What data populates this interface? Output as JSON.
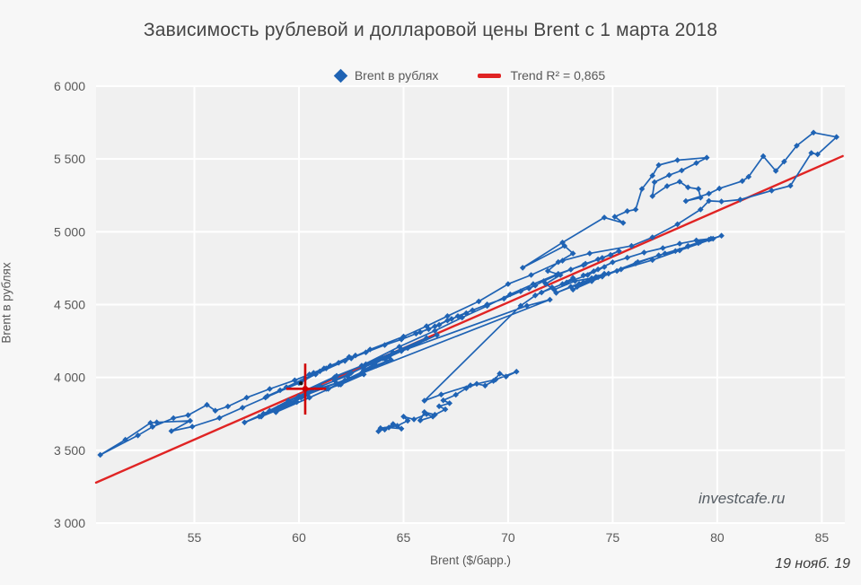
{
  "title": "Зависимость рублевой и долларовой цены Brent с 1 марта 2018",
  "legend": {
    "series_label": "Brent в рублях",
    "trend_label": "Trend R² = 0,865"
  },
  "watermark": "investcafe.ru",
  "date_note": "19 нояб. 19",
  "colors": {
    "background": "#f7f7f7",
    "plot_background": "#f0f0f0",
    "gridline": "#ffffff",
    "series_blue": "#1f63b4",
    "trend_red": "#e02424",
    "crosshair_red": "#d00000",
    "cursor_black": "#161616",
    "text_gray": "#595959",
    "title_gray": "#454545"
  },
  "chart_data": {
    "type": "scatter",
    "title": "Зависимость рублевой и долларовой цены Brent с 1 марта 2018",
    "xlabel": "Brent ($/барр.)",
    "ylabel": "Brent в рублях",
    "xlim": [
      50.3,
      86.1
    ],
    "ylim": [
      3000,
      6000
    ],
    "grid": true,
    "legend_position": "top-center",
    "x_ticks": [
      {
        "value": 55,
        "label": "55"
      },
      {
        "value": 60,
        "label": "60"
      },
      {
        "value": 65,
        "label": "65"
      },
      {
        "value": 70,
        "label": "70"
      },
      {
        "value": 75,
        "label": "75"
      },
      {
        "value": 80,
        "label": "80"
      },
      {
        "value": 85,
        "label": "85"
      }
    ],
    "y_ticks": [
      {
        "value": 3000,
        "label": "3 000"
      },
      {
        "value": 3500,
        "label": "3 500"
      },
      {
        "value": 4000,
        "label": "4 000"
      },
      {
        "value": 4500,
        "label": "4 500"
      },
      {
        "value": 5000,
        "label": "5 000"
      },
      {
        "value": 5500,
        "label": "5 500"
      },
      {
        "value": 6000,
        "label": "6 000"
      }
    ],
    "series": [
      {
        "name": "Brent в рублях",
        "marker": "diamond",
        "color": "#1f63b4",
        "connected": true,
        "points": [
          [
            63.8,
            3630
          ],
          [
            64.3,
            3656
          ],
          [
            64.9,
            3648
          ],
          [
            64.5,
            3681
          ],
          [
            64.1,
            3642
          ],
          [
            63.9,
            3652
          ],
          [
            64.7,
            3668
          ],
          [
            65.2,
            3703
          ],
          [
            65.0,
            3731
          ],
          [
            65.5,
            3712
          ],
          [
            66.1,
            3748
          ],
          [
            66.4,
            3731
          ],
          [
            65.8,
            3705
          ],
          [
            66.0,
            3762
          ],
          [
            66.5,
            3744
          ],
          [
            67.0,
            3781
          ],
          [
            66.7,
            3802
          ],
          [
            67.2,
            3823
          ],
          [
            66.9,
            3843
          ],
          [
            67.5,
            3881
          ],
          [
            68.0,
            3926
          ],
          [
            68.5,
            3956
          ],
          [
            68.9,
            3944
          ],
          [
            69.3,
            3976
          ],
          [
            69.6,
            4026
          ],
          [
            69.9,
            4006
          ],
          [
            70.4,
            4040
          ],
          [
            69.4,
            3985
          ],
          [
            68.2,
            3946
          ],
          [
            66.8,
            3883
          ],
          [
            66.0,
            3840
          ],
          [
            70.6,
            4492
          ],
          [
            71.3,
            4563
          ],
          [
            72.1,
            4618
          ],
          [
            71.6,
            4583
          ],
          [
            72.6,
            4641
          ],
          [
            73.1,
            4683
          ],
          [
            72.8,
            4652
          ],
          [
            73.8,
            4703
          ],
          [
            74.6,
            4758
          ],
          [
            74.1,
            4729
          ],
          [
            73.6,
            4701
          ],
          [
            74.3,
            4742
          ],
          [
            75.0,
            4791
          ],
          [
            75.7,
            4822
          ],
          [
            76.5,
            4858
          ],
          [
            77.4,
            4888
          ],
          [
            78.2,
            4918
          ],
          [
            79.0,
            4941
          ],
          [
            79.7,
            4953
          ],
          [
            79.2,
            4931
          ],
          [
            78.6,
            4903
          ],
          [
            79.1,
            4922
          ],
          [
            79.6,
            4946
          ],
          [
            80.2,
            4973
          ],
          [
            79.8,
            4952
          ],
          [
            78.2,
            4872
          ],
          [
            76.9,
            4806
          ],
          [
            75.4,
            4742
          ],
          [
            74.3,
            4688
          ],
          [
            73.3,
            4622
          ],
          [
            74.0,
            4661
          ],
          [
            73.1,
            4603
          ],
          [
            74.5,
            4692
          ],
          [
            75.2,
            4731
          ],
          [
            76.1,
            4782
          ],
          [
            77.2,
            4838
          ],
          [
            78.0,
            4868
          ],
          [
            78.6,
            4899
          ],
          [
            77.5,
            4851
          ],
          [
            76.2,
            4792
          ],
          [
            74.8,
            4713
          ],
          [
            73.4,
            4642
          ],
          [
            72.3,
            4581
          ],
          [
            73.0,
            4623
          ],
          [
            74.2,
            4691
          ],
          [
            73.6,
            4653
          ],
          [
            74.6,
            4712
          ],
          [
            74.0,
            4682
          ],
          [
            73.2,
            4662
          ],
          [
            72.2,
            4602
          ],
          [
            71.8,
            4642
          ],
          [
            72.5,
            4703
          ],
          [
            71.9,
            4731
          ],
          [
            72.4,
            4792
          ],
          [
            73.1,
            4851
          ],
          [
            72.7,
            4903
          ],
          [
            70.7,
            4753
          ],
          [
            72.6,
            4926
          ],
          [
            74.6,
            5098
          ],
          [
            75.5,
            5061
          ],
          [
            75.1,
            5103
          ],
          [
            75.7,
            5142
          ],
          [
            76.1,
            5153
          ],
          [
            76.4,
            5294
          ],
          [
            76.9,
            5386
          ],
          [
            77.2,
            5458
          ],
          [
            78.1,
            5492
          ],
          [
            79.5,
            5509
          ],
          [
            79.0,
            5472
          ],
          [
            78.3,
            5421
          ],
          [
            77.7,
            5389
          ],
          [
            77.0,
            5341
          ],
          [
            76.9,
            5245
          ],
          [
            77.6,
            5314
          ],
          [
            78.2,
            5344
          ],
          [
            78.6,
            5305
          ],
          [
            79.1,
            5294
          ],
          [
            79.2,
            5234
          ],
          [
            78.5,
            5211
          ],
          [
            79.6,
            5262
          ],
          [
            80.1,
            5297
          ],
          [
            81.2,
            5348
          ],
          [
            81.5,
            5378
          ],
          [
            82.2,
            5519
          ],
          [
            82.8,
            5418
          ],
          [
            83.2,
            5482
          ],
          [
            83.8,
            5591
          ],
          [
            84.6,
            5681
          ],
          [
            85.7,
            5651
          ],
          [
            84.8,
            5532
          ],
          [
            84.5,
            5541
          ],
          [
            83.5,
            5316
          ],
          [
            82.6,
            5283
          ],
          [
            81.1,
            5221
          ],
          [
            80.2,
            5208
          ],
          [
            79.6,
            5212
          ],
          [
            79.2,
            5153
          ],
          [
            78.1,
            5052
          ],
          [
            76.9,
            4962
          ],
          [
            75.9,
            4903
          ],
          [
            73.9,
            4852
          ],
          [
            72.6,
            4801
          ],
          [
            71.1,
            4703
          ],
          [
            70.0,
            4641
          ],
          [
            68.6,
            4522
          ],
          [
            67.1,
            4421
          ],
          [
            66.1,
            4352
          ],
          [
            65.0,
            4281
          ],
          [
            63.4,
            4192
          ],
          [
            62.2,
            4113
          ],
          [
            60.3,
            3992
          ],
          [
            59.4,
            3933
          ],
          [
            61.0,
            4042
          ],
          [
            62.4,
            4141
          ],
          [
            60.8,
            4021
          ],
          [
            59.1,
            3912
          ],
          [
            58.5,
            3873
          ],
          [
            60.1,
            3971
          ],
          [
            61.3,
            4062
          ],
          [
            60.0,
            3961
          ],
          [
            58.4,
            3862
          ],
          [
            57.3,
            3792
          ],
          [
            56.2,
            3722
          ],
          [
            54.9,
            3662
          ],
          [
            53.9,
            3632
          ],
          [
            54.8,
            3702
          ],
          [
            53.2,
            3692
          ],
          [
            52.9,
            3688
          ],
          [
            51.7,
            3572
          ],
          [
            50.5,
            3468
          ],
          [
            52.3,
            3602
          ],
          [
            53.0,
            3661
          ],
          [
            54.0,
            3721
          ],
          [
            54.7,
            3741
          ],
          [
            55.6,
            3812
          ],
          [
            56.0,
            3772
          ],
          [
            56.6,
            3801
          ],
          [
            57.5,
            3861
          ],
          [
            58.6,
            3921
          ],
          [
            59.8,
            3981
          ],
          [
            60.5,
            4021
          ],
          [
            61.2,
            4062
          ],
          [
            60.7,
            4032
          ],
          [
            61.5,
            4081
          ],
          [
            62.7,
            4151
          ],
          [
            61.9,
            4101
          ],
          [
            62.5,
            4131
          ],
          [
            63.2,
            4172
          ],
          [
            64.1,
            4222
          ],
          [
            64.9,
            4261
          ],
          [
            65.6,
            4301
          ],
          [
            66.2,
            4332
          ],
          [
            65.8,
            4311
          ],
          [
            66.7,
            4361
          ],
          [
            67.1,
            4391
          ],
          [
            66.5,
            4351
          ],
          [
            67.3,
            4402
          ],
          [
            68.0,
            4441
          ],
          [
            67.6,
            4421
          ],
          [
            68.3,
            4461
          ],
          [
            69.0,
            4501
          ],
          [
            69.8,
            4541
          ],
          [
            70.6,
            4591
          ],
          [
            71.3,
            4631
          ],
          [
            71.0,
            4611
          ],
          [
            71.7,
            4661
          ],
          [
            72.3,
            4701
          ],
          [
            73.0,
            4741
          ],
          [
            73.7,
            4781
          ],
          [
            74.3,
            4811
          ],
          [
            74.9,
            4841
          ],
          [
            75.3,
            4868
          ],
          [
            74.5,
            4821
          ],
          [
            73.6,
            4771
          ],
          [
            72.4,
            4711
          ],
          [
            71.2,
            4641
          ],
          [
            70.1,
            4571
          ],
          [
            69.0,
            4491
          ],
          [
            67.8,
            4411
          ],
          [
            66.5,
            4321
          ],
          [
            64.8,
            4211
          ],
          [
            63.0,
            4081
          ],
          [
            61.7,
            4001
          ],
          [
            60.3,
            3911
          ],
          [
            61.8,
            4011
          ],
          [
            63.2,
            4091
          ],
          [
            64.5,
            4171
          ],
          [
            66.1,
            4271
          ],
          [
            64.9,
            4191
          ],
          [
            63.8,
            4121
          ],
          [
            62.4,
            4021
          ],
          [
            63.1,
            4071
          ],
          [
            64.3,
            4141
          ],
          [
            66.6,
            4291
          ],
          [
            65.2,
            4201
          ],
          [
            64.1,
            4131
          ],
          [
            63.1,
            4051
          ],
          [
            64.2,
            4111
          ],
          [
            63.5,
            4071
          ],
          [
            62.2,
            3981
          ],
          [
            61.4,
            3921
          ],
          [
            63.0,
            4031
          ],
          [
            64.4,
            4121
          ],
          [
            63.7,
            4081
          ],
          [
            61.9,
            3951
          ],
          [
            60.5,
            3861
          ],
          [
            58.9,
            3761
          ],
          [
            59.9,
            3831
          ],
          [
            58.2,
            3731
          ],
          [
            59.6,
            3821
          ],
          [
            60.4,
            3881
          ],
          [
            59.2,
            3801
          ],
          [
            58.6,
            3771
          ],
          [
            60.0,
            3871
          ],
          [
            61.0,
            3941
          ],
          [
            60.4,
            3891
          ],
          [
            60.2,
            3871
          ],
          [
            72.0,
            4534
          ],
          [
            70.9,
            4492
          ],
          [
            64.9,
            4181
          ],
          [
            64.0,
            4131
          ],
          [
            63.6,
            4101
          ],
          [
            62.5,
            4031
          ],
          [
            61.7,
            3981
          ],
          [
            62.3,
            4011
          ],
          [
            60.9,
            3931
          ],
          [
            59.5,
            3841
          ],
          [
            58.3,
            3751
          ],
          [
            57.4,
            3691
          ],
          [
            58.1,
            3731
          ],
          [
            59.3,
            3811
          ],
          [
            60.1,
            3861
          ],
          [
            59.0,
            3791
          ],
          [
            59.9,
            3851
          ],
          [
            61.1,
            3931
          ],
          [
            61.8,
            3961
          ],
          [
            62.4,
            3991
          ],
          [
            63.1,
            4021
          ],
          [
            62.0,
            3951
          ],
          [
            61.3,
            3921
          ],
          [
            60.3,
            3922
          ]
        ]
      }
    ],
    "trend": {
      "name": "Trend",
      "label": "Trend R² = 0,865",
      "r_squared": 0.865,
      "color": "#e02424",
      "x1": 50.3,
      "y1": 3278,
      "x2": 86.0,
      "y2": 5520
    },
    "current_point_marker": {
      "x": 60.3,
      "y": 3922,
      "x_range": [
        59.4,
        61.3
      ],
      "y_range": [
        3745,
        4095
      ],
      "color": "#d00000"
    },
    "cursor_dot": {
      "x": 60.1,
      "y": 3960,
      "color": "#161616"
    }
  }
}
